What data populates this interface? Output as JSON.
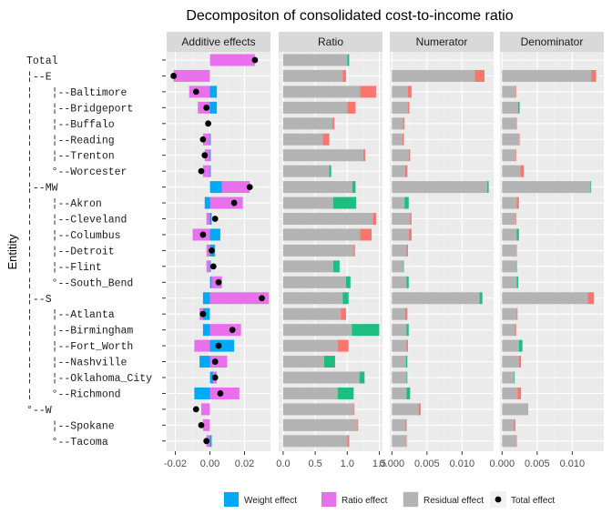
{
  "chart_data": {
    "type": "bar",
    "title": "Decompositon of consolidated cost-to-income ratio",
    "ylabel": "Entitity",
    "entities": [
      "Total",
      "¦--E",
      "¦   ¦--Baltimore",
      "¦   ¦--Bridgeport",
      "¦   ¦--Buffalo",
      "¦   ¦--Reading",
      "¦   ¦--Trenton",
      "¦   °--Worcester",
      "¦--MW",
      "¦   ¦--Akron",
      "¦   ¦--Cleveland",
      "¦   ¦--Columbus",
      "¦   ¦--Detroit",
      "¦   ¦--Flint",
      "¦   °--South_Bend",
      "¦--S",
      "¦   ¦--Atlanta",
      "¦   ¦--Birmingham",
      "¦   ¦--Fort_Worth",
      "¦   ¦--Nashville",
      "¦   ¦--Oklahoma_City",
      "¦   °--Richmond",
      "°--W",
      "    ¦--Spokane",
      "    °--Tacoma"
    ],
    "legend": {
      "placement": "bottom",
      "items": [
        {
          "label": "Weight effect",
          "color": "#00A9F4"
        },
        {
          "label": "Ratio effect",
          "color": "#E870EC"
        },
        {
          "label": "Residual effect",
          "color": "#B3B3B3"
        },
        {
          "label": "Total effect",
          "color": "#000000"
        }
      ]
    },
    "colors": {
      "grey": "#B3B3B3",
      "red": "#F8766D",
      "green": "#1EBE80",
      "blue": "#00A9F4",
      "pink": "#E870EC"
    },
    "panels": [
      {
        "name": "Additive effects",
        "xlim": [
          -0.025,
          0.035
        ],
        "ticks": [
          -0.02,
          0.0,
          0.02
        ],
        "tick_labels": [
          "-0.02",
          "0.00",
          "0.02"
        ],
        "weight": [
          0,
          0,
          0.004,
          0.004,
          0,
          0.0005,
          0.0005,
          0.0005,
          0.007,
          -0.003,
          0.001,
          0.006,
          0.003,
          0.0005,
          0.001,
          -0.004,
          -0.004,
          -0.004,
          0.014,
          -0.006,
          0.002,
          -0.009,
          0,
          0,
          0.001
        ],
        "ratio": [
          0.026,
          -0.021,
          -0.012,
          -0.007,
          0,
          -0.004,
          -0.003,
          -0.004,
          0.016,
          0.019,
          -0.002,
          -0.01,
          -0.002,
          -0.002,
          0.006,
          0.034,
          -0.002,
          0.018,
          -0.009,
          0.01,
          0.002,
          0.017,
          -0.005,
          -0.004,
          -0.002
        ],
        "total": [
          0.026,
          -0.021,
          -0.008,
          -0.002,
          -0.001,
          -0.004,
          -0.003,
          -0.005,
          0.023,
          0.014,
          0.003,
          -0.004,
          0.001,
          0.002,
          0.005,
          0.03,
          -0.004,
          0.013,
          0.005,
          0.003,
          0.003,
          0.006,
          -0.008,
          -0.005,
          -0.002
        ]
      },
      {
        "name": "Ratio",
        "xlim": [
          -0.07,
          1.55
        ],
        "ticks": [
          0,
          0.5,
          1.0,
          1.5
        ],
        "tick_labels": [
          "0.0",
          "0.5",
          "1.0",
          "1.5"
        ],
        "grey": [
          1.0,
          0.93,
          1.2,
          1.0,
          0.77,
          0.62,
          1.25,
          0.72,
          1.08,
          0.78,
          1.4,
          1.2,
          1.1,
          0.78,
          0.98,
          0.93,
          0.9,
          1.07,
          0.85,
          0.64,
          1.19,
          0.85,
          1.1,
          1.16,
          1.0
        ],
        "diff": [
          0.03,
          0.05,
          0.25,
          0.13,
          0.03,
          0.1,
          0.03,
          0.03,
          0.05,
          0.36,
          0.05,
          0.18,
          0.02,
          0.1,
          0.07,
          0.09,
          0.08,
          0.43,
          0.17,
          0.17,
          0.08,
          0.25,
          0.01,
          0.01,
          0.03
        ],
        "diff_color": [
          "green",
          "red",
          "red",
          "red",
          "red",
          "red",
          "red",
          "green",
          "green",
          "green",
          "red",
          "red",
          "red",
          "green",
          "green",
          "green",
          "red",
          "green",
          "red",
          "green",
          "green",
          "green",
          "red",
          "red",
          "red"
        ]
      },
      {
        "name": "Numerator",
        "xlim": [
          -0.0003,
          0.0145
        ],
        "ticks": [
          0.0,
          0.005,
          0.01
        ],
        "tick_labels": [
          "0.000",
          "0.005",
          "0.010"
        ],
        "grey": [
          0,
          0.0118,
          0.0023,
          0.0023,
          0.0016,
          0.0015,
          0.0024,
          0.0019,
          0.0136,
          0.0018,
          0.0026,
          0.0024,
          0.0021,
          0.0016,
          0.0021,
          0.0125,
          0.0019,
          0.0021,
          0.0021,
          0.002,
          0.0021,
          0.0021,
          0.0038,
          0.0019,
          0.002
        ],
        "diff": [
          0,
          0.0014,
          0.0005,
          0.0002,
          0.0002,
          0.0002,
          0.0002,
          0.0003,
          0.0002,
          0.0006,
          0.0002,
          0.0004,
          0.0002,
          0.0001,
          0.0003,
          0.0004,
          0.0003,
          0.0003,
          0.0002,
          0.0002,
          0.0001,
          0.0005,
          0.0003,
          0.0002,
          0.0001
        ],
        "diff_color": [
          "green",
          "red",
          "red",
          "red",
          "red",
          "red",
          "red",
          "red",
          "green",
          "green",
          "red",
          "red",
          "red",
          "green",
          "green",
          "green",
          "red",
          "green",
          "red",
          "green",
          "green",
          "green",
          "red",
          "red",
          "red"
        ]
      },
      {
        "name": "Denominator",
        "xlim": [
          -0.0003,
          0.0145
        ],
        "ticks": [
          0.0,
          0.005,
          0.01
        ],
        "tick_labels": [
          "0.000",
          "0.005",
          "0.010"
        ],
        "grey": [
          0,
          0.0127,
          0.0019,
          0.0023,
          0.002,
          0.0024,
          0.0019,
          0.0026,
          0.0126,
          0.0021,
          0.0019,
          0.0021,
          0.002,
          0.002,
          0.0021,
          0.0122,
          0.0021,
          0.0018,
          0.0024,
          0.0024,
          0.0017,
          0.0022,
          0.0036,
          0.0017,
          0.002
        ],
        "diff": [
          0,
          0.0007,
          0.0001,
          0.0002,
          0.0001,
          0.0001,
          0.0001,
          0.0005,
          0.0001,
          0.0003,
          0.0001,
          0.0003,
          0.0001,
          0.0001,
          0.0002,
          0.0009,
          0.0001,
          0.0002,
          0.0005,
          0.0003,
          0.0001,
          0.0005,
          0.0001,
          0.0002,
          0.0001
        ],
        "diff_color": [
          "green",
          "red",
          "red",
          "green",
          "red",
          "red",
          "red",
          "red",
          "green",
          "red",
          "red",
          "green",
          "red",
          "green",
          "green",
          "red",
          "red",
          "red",
          "green",
          "red",
          "green",
          "red",
          "red",
          "red",
          "red"
        ]
      }
    ]
  }
}
